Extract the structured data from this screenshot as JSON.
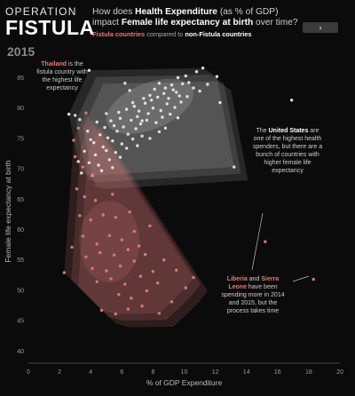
{
  "brand": {
    "line1": "OPERATION",
    "line2": "FISTULA"
  },
  "headline": {
    "part1": "How does ",
    "bold1": "Health Expenditure",
    "part2": " (as % of GDP) impact ",
    "bold2": "Female life expectancy at birth",
    "part3": " over time?"
  },
  "subtitle": {
    "fistula": "Fistula countries",
    "mid": " compared to ",
    "non": "non-Fistula countries"
  },
  "next_button": {
    "label": "›"
  },
  "year": "2015",
  "annotations": {
    "thailand": {
      "name": "Thailand",
      "text": " is the fistula country with the highest life expectancy"
    },
    "us": {
      "pre": "The ",
      "name": "United States",
      "text": " are one of the highest health spenders, but there are a bunch of countries with higher female life expectancy"
    },
    "liberia": {
      "name1": "Liberia",
      "mid": " and ",
      "name2": "Sierra Leone",
      "text": " have been spending more in 2014 and 2015, but the process takes time"
    }
  },
  "colors": {
    "fistula": "#e27a7a",
    "non_fistula": "#e6e6e6",
    "background": "#0b0b0b"
  },
  "chart_data": {
    "type": "scatter",
    "title": "How does Health Expenditure (as % of GDP) impact Female life expectancy at birth over time?",
    "xlabel": "% of GDP Expenditure",
    "ylabel": "Female life expectancy at birth",
    "xlim": [
      0,
      20
    ],
    "ylim": [
      38,
      88
    ],
    "xticks": [
      0,
      2,
      4,
      6,
      8,
      10,
      12,
      14,
      16,
      18,
      20
    ],
    "yticks": [
      40,
      45,
      50,
      55,
      60,
      65,
      70,
      75,
      80,
      85
    ],
    "grid": false,
    "legend": "none",
    "series": [
      {
        "name": "non-Fistula countries",
        "points": [
          [
            3.9,
            86.2
          ],
          [
            6.5,
            82.9
          ],
          [
            9.2,
            83.8
          ],
          [
            10.3,
            84.2
          ],
          [
            11.2,
            86.6
          ],
          [
            12.1,
            85.2
          ],
          [
            10.1,
            85.3
          ],
          [
            8.4,
            84.1
          ],
          [
            6.2,
            84.1
          ],
          [
            5.8,
            79.3
          ],
          [
            6.7,
            80.9
          ],
          [
            7.4,
            81.6
          ],
          [
            7.8,
            82.1
          ],
          [
            8.1,
            83.1
          ],
          [
            8.8,
            83.3
          ],
          [
            9.5,
            82.6
          ],
          [
            9.9,
            84.0
          ],
          [
            10.6,
            83.3
          ],
          [
            11.0,
            82.8
          ],
          [
            5.3,
            77.9
          ],
          [
            5.9,
            78.3
          ],
          [
            6.3,
            79.8
          ],
          [
            6.8,
            80.3
          ],
          [
            7.1,
            79.5
          ],
          [
            7.5,
            80.8
          ],
          [
            7.9,
            81.3
          ],
          [
            8.3,
            81.8
          ],
          [
            8.7,
            82.4
          ],
          [
            9.0,
            81.6
          ],
          [
            9.3,
            83.0
          ],
          [
            9.7,
            82.0
          ],
          [
            10.2,
            81.9
          ],
          [
            4.9,
            76.8
          ],
          [
            5.5,
            77.1
          ],
          [
            6.1,
            76.9
          ],
          [
            6.6,
            78.0
          ],
          [
            7.0,
            78.6
          ],
          [
            7.3,
            77.9
          ],
          [
            7.7,
            79.1
          ],
          [
            8.0,
            80.0
          ],
          [
            8.5,
            79.6
          ],
          [
            8.9,
            80.7
          ],
          [
            9.4,
            80.1
          ],
          [
            9.8,
            81.0
          ],
          [
            4.6,
            75.6
          ],
          [
            5.1,
            75.1
          ],
          [
            5.7,
            76.2
          ],
          [
            6.4,
            75.7
          ],
          [
            6.9,
            76.6
          ],
          [
            7.2,
            77.4
          ],
          [
            7.6,
            78.0
          ],
          [
            8.2,
            77.6
          ],
          [
            8.6,
            78.5
          ],
          [
            9.1,
            79.0
          ],
          [
            9.6,
            78.4
          ],
          [
            4.2,
            74.3
          ],
          [
            4.8,
            73.6
          ],
          [
            5.4,
            74.6
          ],
          [
            6.0,
            74.1
          ],
          [
            6.7,
            74.9
          ],
          [
            7.3,
            75.4
          ],
          [
            7.8,
            75.0
          ],
          [
            8.4,
            76.1
          ],
          [
            8.8,
            76.7
          ],
          [
            3.6,
            72.9
          ],
          [
            4.3,
            72.3
          ],
          [
            5.0,
            73.0
          ],
          [
            5.6,
            72.7
          ],
          [
            6.3,
            73.4
          ],
          [
            7.0,
            73.8
          ],
          [
            3.2,
            71.2
          ],
          [
            3.9,
            71.0
          ],
          [
            4.5,
            70.6
          ],
          [
            5.2,
            71.5
          ],
          [
            5.9,
            71.9
          ],
          [
            3.4,
            69.3
          ],
          [
            4.1,
            68.9
          ],
          [
            4.7,
            69.7
          ],
          [
            5.4,
            70.2
          ],
          [
            2.6,
            79.0
          ],
          [
            3.3,
            78.1
          ],
          [
            3.0,
            78.8
          ],
          [
            12.3,
            80.9
          ],
          [
            11.5,
            83.9
          ],
          [
            10.8,
            86.0
          ],
          [
            9.6,
            85.0
          ],
          [
            4.4,
            77.7
          ],
          [
            3.8,
            76.2
          ],
          [
            5.0,
            79.1
          ],
          [
            4.0,
            74.8
          ],
          [
            16.9,
            81.3
          ],
          [
            13.2,
            70.3
          ]
        ]
      },
      {
        "name": "Fistula countries",
        "points": [
          [
            3.7,
            79.2
          ],
          [
            3.2,
            76.7
          ],
          [
            2.9,
            74.7
          ],
          [
            3.0,
            72.0
          ],
          [
            3.5,
            70.3
          ],
          [
            4.1,
            69.0
          ],
          [
            3.1,
            66.7
          ],
          [
            3.6,
            65.4
          ],
          [
            4.3,
            64.8
          ],
          [
            5.4,
            65.8
          ],
          [
            3.3,
            62.3
          ],
          [
            4.0,
            61.6
          ],
          [
            4.8,
            62.4
          ],
          [
            5.6,
            62.0
          ],
          [
            6.5,
            62.9
          ],
          [
            3.5,
            58.9
          ],
          [
            4.4,
            57.6
          ],
          [
            5.2,
            59.0
          ],
          [
            6.0,
            58.3
          ],
          [
            6.8,
            59.7
          ],
          [
            2.8,
            57.1
          ],
          [
            3.7,
            55.5
          ],
          [
            4.6,
            56.2
          ],
          [
            5.5,
            55.8
          ],
          [
            6.4,
            56.7
          ],
          [
            7.1,
            57.3
          ],
          [
            4.1,
            53.6
          ],
          [
            5.0,
            53.2
          ],
          [
            5.9,
            54.0
          ],
          [
            6.8,
            54.8
          ],
          [
            7.5,
            55.9
          ],
          [
            4.4,
            51.4
          ],
          [
            5.3,
            51.9
          ],
          [
            6.2,
            51.0
          ],
          [
            7.2,
            52.3
          ],
          [
            8.0,
            53.1
          ],
          [
            5.8,
            49.3
          ],
          [
            6.6,
            48.7
          ],
          [
            7.6,
            49.9
          ],
          [
            8.3,
            51.2
          ],
          [
            4.7,
            46.7
          ],
          [
            5.6,
            46.1
          ],
          [
            6.4,
            46.9
          ],
          [
            7.3,
            47.4
          ],
          [
            8.4,
            46.2
          ],
          [
            9.2,
            48.1
          ],
          [
            10.1,
            50.4
          ],
          [
            10.6,
            52.1
          ],
          [
            9.5,
            53.3
          ],
          [
            8.7,
            55.0
          ],
          [
            2.3,
            52.9
          ],
          [
            7.8,
            60.6
          ],
          [
            15.2,
            58.0
          ],
          [
            18.3,
            51.8
          ]
        ]
      }
    ]
  }
}
